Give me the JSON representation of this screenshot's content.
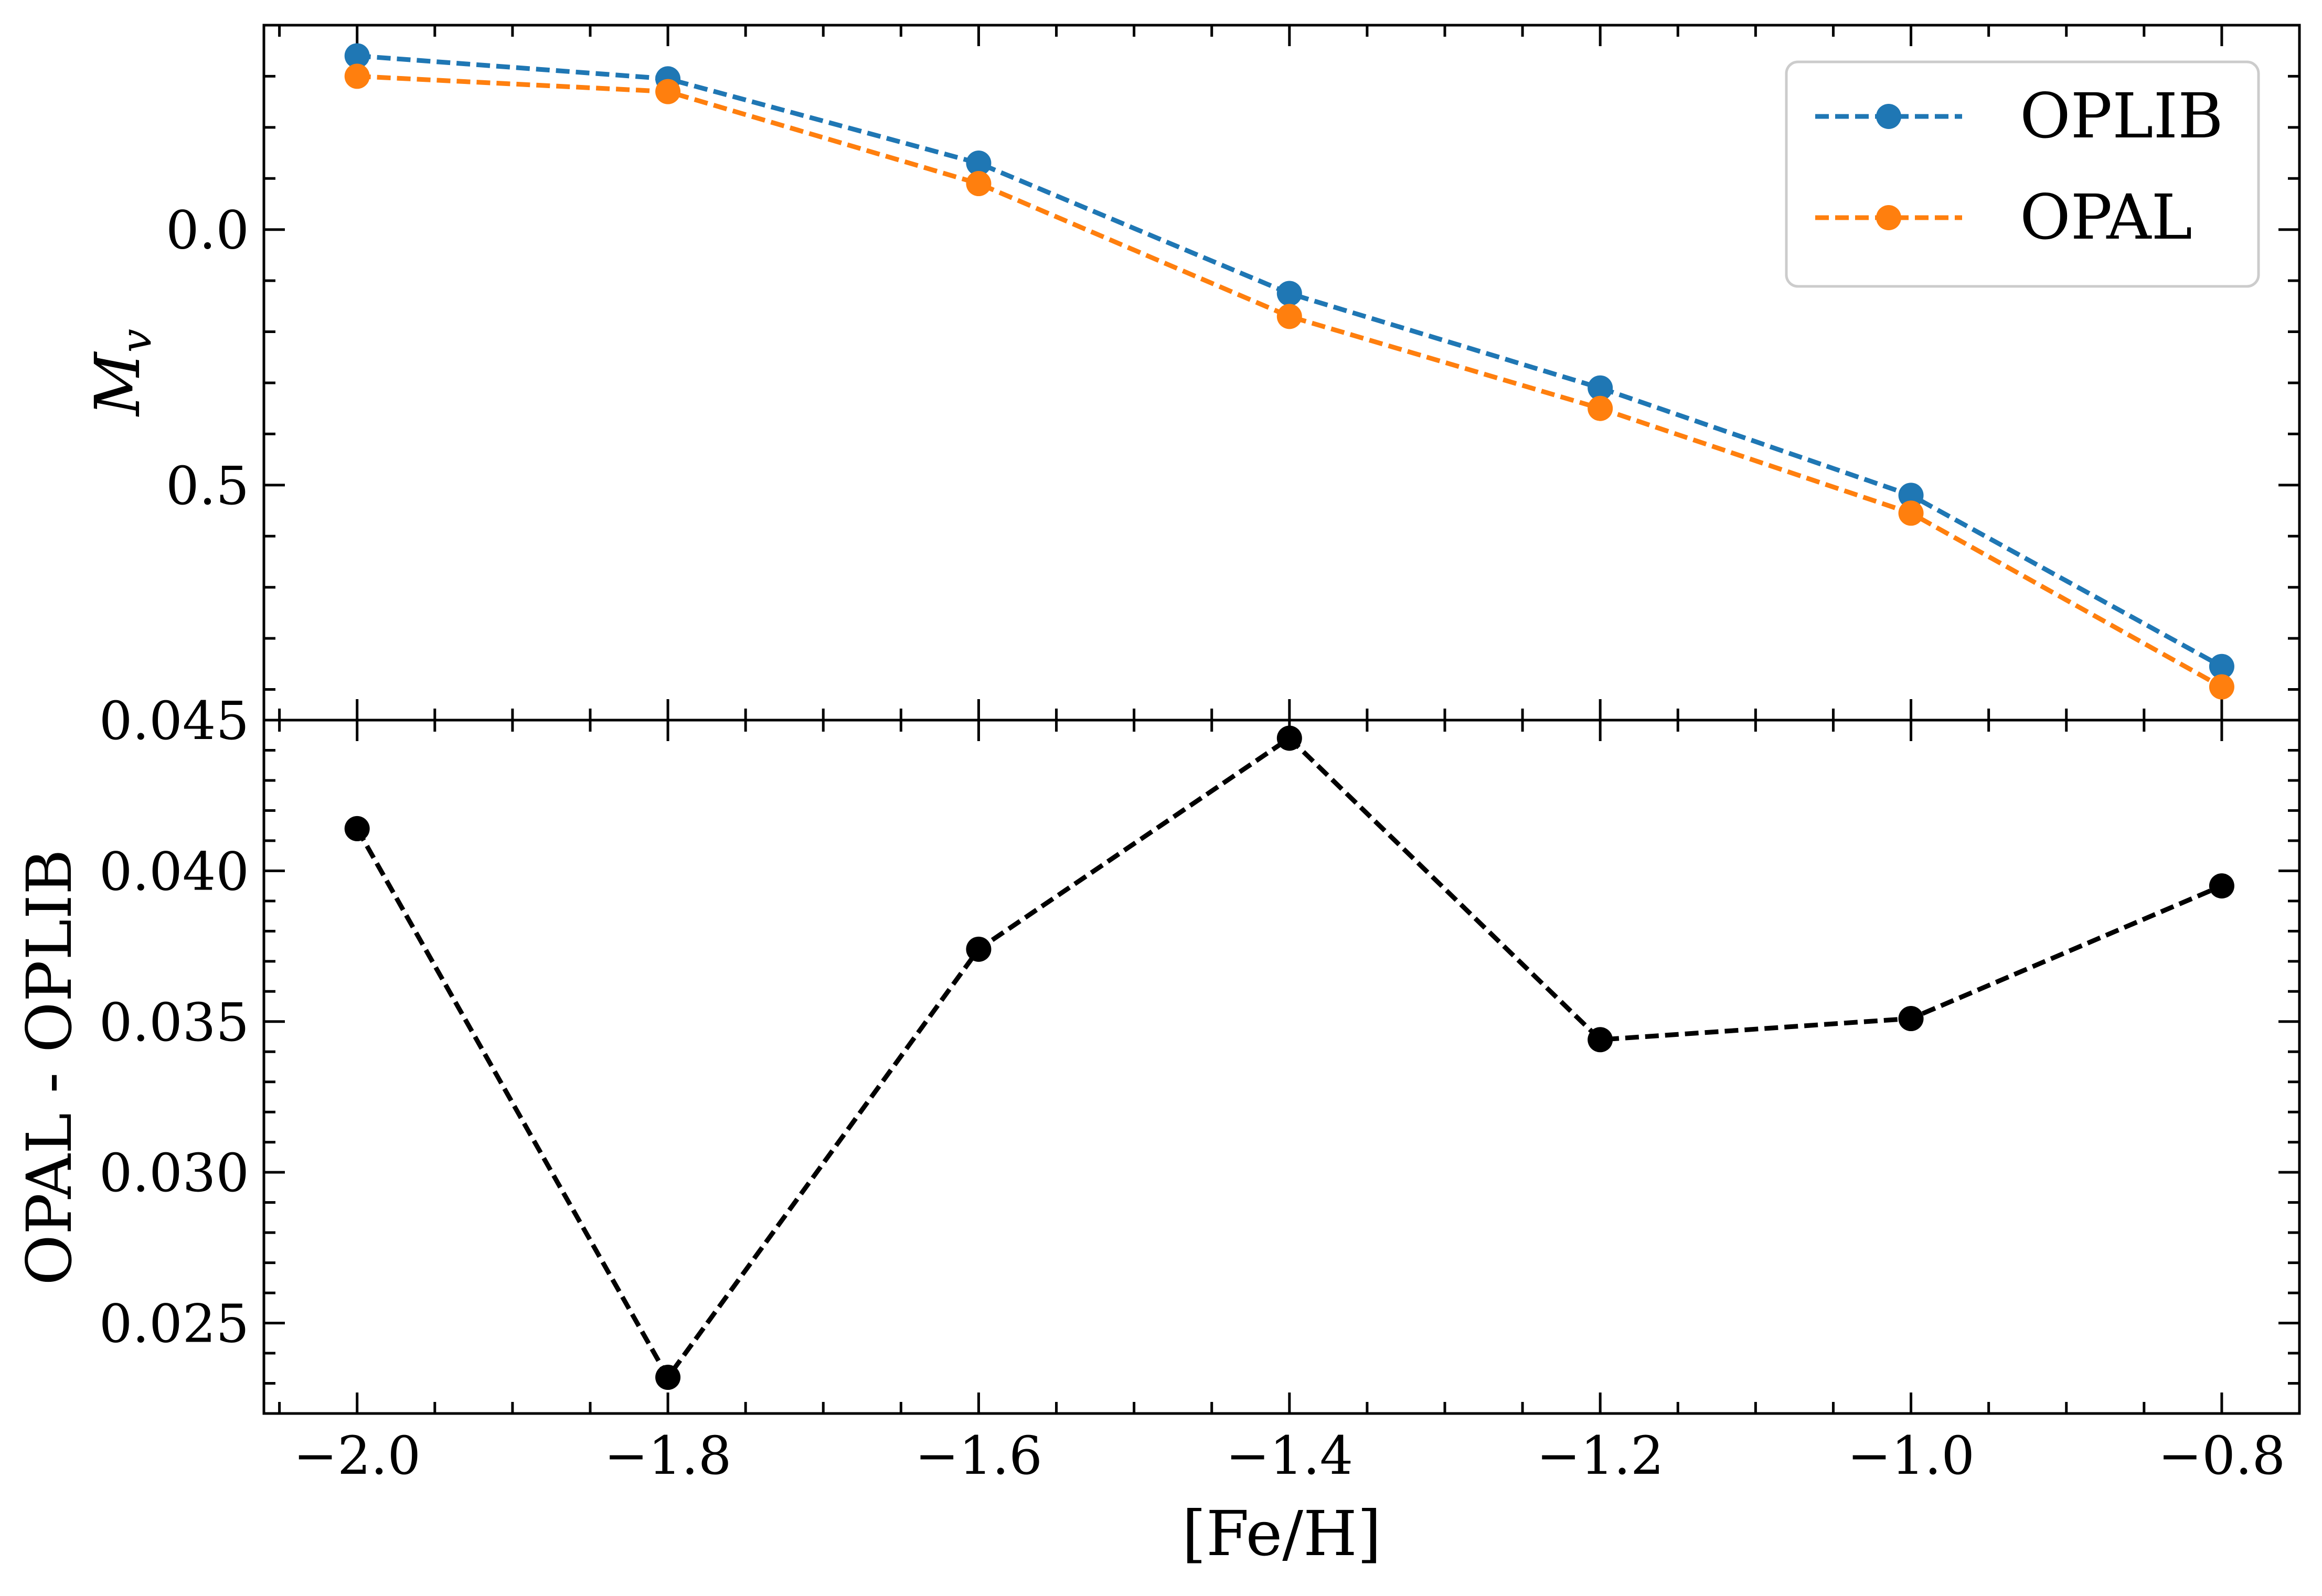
{
  "chart_data": [
    {
      "type": "line",
      "ylabel": "M_v",
      "y_inverted": true,
      "xlim": [
        -2.06,
        -0.75
      ],
      "ylim": [
        -0.4,
        0.96
      ],
      "yticks": [
        0.0,
        0.5
      ],
      "ytick_labels": [
        "0.0",
        "0.5"
      ],
      "x": [
        -2.0,
        -1.8,
        -1.6,
        -1.4,
        -1.2,
        -1.0,
        -0.8
      ],
      "series": [
        {
          "name": "OPLIB",
          "color": "#1f77b4",
          "linestyle": "dashed",
          "marker": "circle",
          "values": [
            -0.34,
            -0.295,
            -0.13,
            0.125,
            0.31,
            0.52,
            0.855
          ]
        },
        {
          "name": "OPAL",
          "color": "#ff7f0e",
          "linestyle": "dashed",
          "marker": "circle",
          "values": [
            -0.3,
            -0.27,
            -0.09,
            0.17,
            0.35,
            0.555,
            0.895
          ]
        }
      ],
      "legend": {
        "position": "top-right",
        "entries": [
          "OPLIB",
          "OPAL"
        ]
      },
      "grid": false
    },
    {
      "type": "line",
      "xlabel": "[Fe/H]",
      "ylabel": "OPAL - OPLIB",
      "xlim": [
        -2.06,
        -0.75
      ],
      "ylim": [
        0.022,
        0.045
      ],
      "xticks": [
        -2.0,
        -1.8,
        -1.6,
        -1.4,
        -1.2,
        -1.0,
        -0.8
      ],
      "xtick_labels": [
        "−2.0",
        "−1.8",
        "−1.6",
        "−1.4",
        "−1.2",
        "−1.0",
        "−0.8"
      ],
      "yticks": [
        0.025,
        0.03,
        0.035,
        0.04,
        0.045
      ],
      "ytick_labels": [
        "0.025",
        "0.030",
        "0.035",
        "0.040",
        "0.045"
      ],
      "x": [
        -2.0,
        -1.8,
        -1.6,
        -1.4,
        -1.2,
        -1.0,
        -0.8
      ],
      "series": [
        {
          "color": "#000000",
          "linestyle": "dashed",
          "marker": "circle",
          "values": [
            0.0414,
            0.0232,
            0.0374,
            0.0444,
            0.0344,
            0.0351,
            0.0395
          ]
        }
      ],
      "grid": false
    }
  ]
}
